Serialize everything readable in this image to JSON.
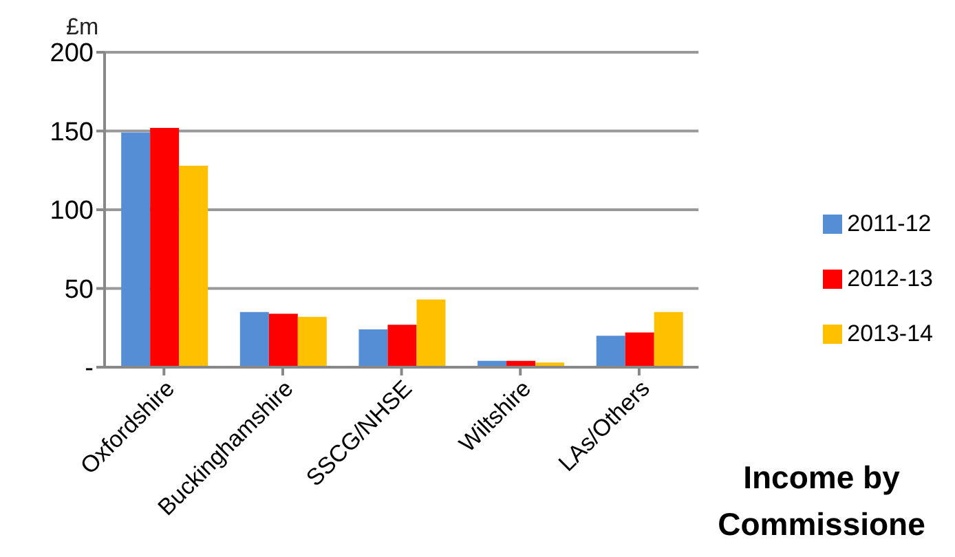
{
  "chart_data": {
    "type": "bar",
    "title": "Income by Commissione",
    "ylabel": "£m",
    "categories": [
      "Oxfordshire",
      "Buckinghamshire",
      "SSCG/NHSE",
      "Wiltshire",
      "LAs/Others"
    ],
    "series": [
      {
        "name": "2011-12",
        "color": "#558ed5",
        "values": [
          149,
          35,
          24,
          4,
          20
        ]
      },
      {
        "name": "2012-13",
        "color": "#ff0000",
        "values": [
          152,
          34,
          27,
          4,
          22
        ]
      },
      {
        "name": "2013-14",
        "color": "#ffc000",
        "values": [
          128,
          32,
          43,
          3,
          35
        ]
      }
    ],
    "ylim": [
      0,
      200
    ],
    "yticks": [
      {
        "value": 0,
        "label": "-"
      },
      50,
      100,
      150,
      200
    ],
    "grid": "y",
    "legend": "right"
  }
}
